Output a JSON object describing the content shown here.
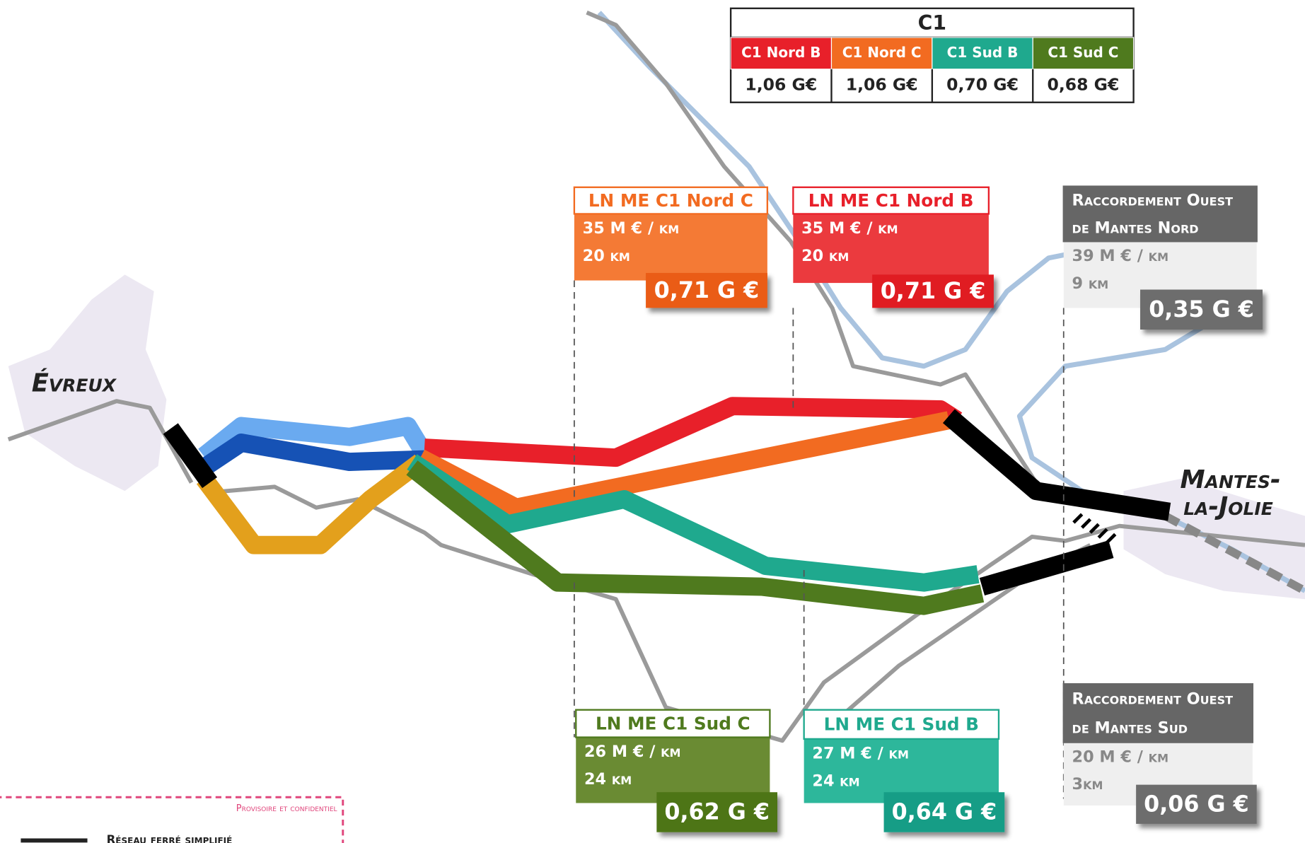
{
  "table": {
    "title": "C1",
    "columns": [
      {
        "header": "C1 Nord B",
        "color": "#e8202a",
        "cost": "1,06 G€"
      },
      {
        "header": "C1 Nord C",
        "color": "#f26b21",
        "cost": "1,06 G€"
      },
      {
        "header": "C1 Sud B",
        "color": "#1fa98e",
        "cost": "0,70 G€"
      },
      {
        "header": "C1 Sud C",
        "color": "#4f7a1e",
        "cost": "0,68 G€"
      }
    ]
  },
  "cities": {
    "evreux": "Évreux",
    "mantes_1": "Mantes-",
    "mantes_2": "la-Jolie"
  },
  "boxes": [
    {
      "title": [
        "LN ME C1 Nord C"
      ],
      "cost_per_km": "35 M € / km",
      "length": "20 km",
      "total": "0,71 G €",
      "accent": "#f26b21",
      "body": "#f47a35",
      "total_bg": "#ea5b12"
    },
    {
      "title": [
        "LN ME C1 Nord B"
      ],
      "cost_per_km": "35 M € / km",
      "length": "20 km",
      "total": "0,71 G €",
      "accent": "#e8202a",
      "body": "#eb3a3e",
      "total_bg": "#e01b22"
    },
    {
      "title": [
        "Raccordement Ouest",
        "de Mantes Nord"
      ],
      "cost_per_km": "39 M € / km",
      "length": "9 km",
      "total": "0,35 G €",
      "accent": "#666666",
      "body": "#efefef",
      "total_bg": "#6d6d6d"
    },
    {
      "title": [
        "LN ME C1 Sud C"
      ],
      "cost_per_km": "26 M € / km",
      "length": "24 km",
      "total": "0,62 G €",
      "accent": "#4f7a1e",
      "body": "#6a8b33",
      "total_bg": "#4d7419"
    },
    {
      "title": [
        "LN ME C1 Sud B"
      ],
      "cost_per_km": "27 M € / km",
      "length": "24 km",
      "total": "0,64 G €",
      "accent": "#1fa98e",
      "body": "#2db79b",
      "total_bg": "#149d86"
    },
    {
      "title": [
        "Raccordement Ouest",
        "de Mantes Sud"
      ],
      "cost_per_km": "20 M € / km",
      "length": "3km",
      "total": "0,06 G €",
      "accent": "#666666",
      "body": "#efefef",
      "total_bg": "#6d6d6d"
    }
  ],
  "footer": {
    "notice": "Provisoire et confidentiel",
    "legend": "Réseau ferré simplifié"
  }
}
